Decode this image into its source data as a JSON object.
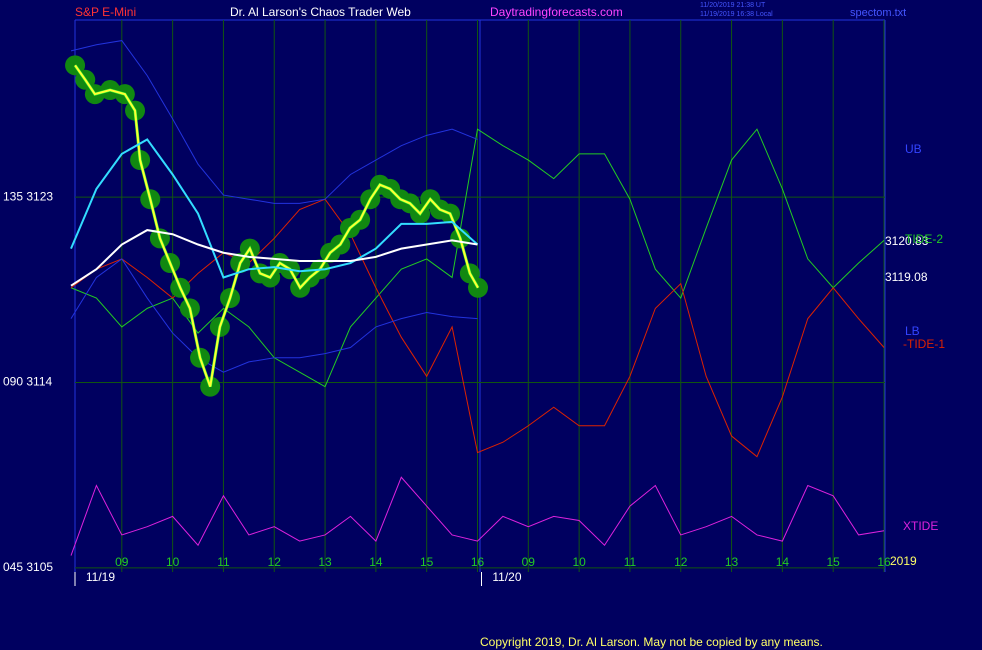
{
  "header": {
    "symbol": "S&P E-Mini",
    "site_title": "Dr. Al Larson's Chaos Trader Web",
    "site": "Daytradingforecasts.com",
    "time_ut": "11/20/2019 21:38 UT",
    "time_local": "11/19/2019 16:38 Local",
    "file": "spectom.txt"
  },
  "footer": {
    "copyright": "Copyright 2019, Dr. Al Larson. May not be copied by any means."
  },
  "chart_data": {
    "type": "line",
    "xlim": [
      0,
      16
    ],
    "ylim": [
      3104.8,
      3131.6
    ],
    "xticks": [
      {
        "value": 1,
        "label": "09"
      },
      {
        "value": 2,
        "label": "10"
      },
      {
        "value": 3,
        "label": "11"
      },
      {
        "value": 4,
        "label": "12"
      },
      {
        "value": 5,
        "label": "13"
      },
      {
        "value": 6,
        "label": "14"
      },
      {
        "value": 7,
        "label": "15"
      },
      {
        "value": 8,
        "label": "16"
      },
      {
        "value": 9,
        "label": "09"
      },
      {
        "value": 10,
        "label": "10"
      },
      {
        "value": 11,
        "label": "11"
      },
      {
        "value": 12,
        "label": "12"
      },
      {
        "value": 13,
        "label": "13"
      },
      {
        "value": 14,
        "label": "14"
      },
      {
        "value": 15,
        "label": "15"
      },
      {
        "value": 16,
        "label": "16"
      }
    ],
    "yticks": [
      {
        "value": 3123,
        "label": "135  3123"
      },
      {
        "value": 3114,
        "label": "090  3114"
      },
      {
        "value": 3105,
        "label": "045  3105"
      }
    ],
    "grid": true,
    "dates": [
      {
        "value": 0,
        "label": "11/19"
      },
      {
        "value": 8,
        "label": "11/20"
      }
    ],
    "right_labels": [
      "UB",
      "3120.83",
      "TIDE-2",
      "3119.08",
      "LB",
      "-TIDE-1",
      "XTIDE",
      "2019"
    ],
    "series": [
      {
        "name": "TIDE-2",
        "color": "#22cc22",
        "x": [
          0,
          0.5,
          1,
          1.5,
          2,
          2.5,
          3,
          3.5,
          4,
          4.5,
          5,
          5.5,
          6,
          6.5,
          7,
          7.5,
          8,
          8.5,
          9,
          9.5,
          10,
          10.5,
          11,
          11.5,
          12,
          12.5,
          13,
          13.5,
          14,
          14.5,
          15,
          15.5,
          16
        ],
        "values": [
          3118.6,
          3118.1,
          3116.7,
          3117.6,
          3118.1,
          3116.4,
          3117.6,
          3116.7,
          3115.2,
          3114.5,
          3113.8,
          3116.7,
          3118.1,
          3119.5,
          3120.0,
          3119.1,
          3126.3,
          3125.5,
          3124.8,
          3123.9,
          3125.1,
          3125.1,
          3122.9,
          3119.5,
          3118.1,
          3121.5,
          3124.8,
          3126.3,
          3123.4,
          3120.0,
          3118.6,
          3119.8,
          3120.9
        ]
      },
      {
        "name": "-TIDE-1",
        "color": "#dd2200",
        "x": [
          0,
          0.5,
          1,
          1.5,
          2,
          2.5,
          3,
          3.5,
          4,
          4.5,
          5,
          5.5,
          6,
          6.5,
          7,
          7.5,
          8,
          8.5,
          9,
          9.5,
          10,
          10.5,
          11,
          11.5,
          12,
          12.5,
          13,
          13.5,
          14,
          14.5,
          15,
          15.5,
          16
        ],
        "values": [
          3118.6,
          3119.5,
          3120.0,
          3119.1,
          3118.1,
          3119.3,
          3120.3,
          3119.8,
          3121.0,
          3122.4,
          3122.9,
          3121.2,
          3118.6,
          3116.2,
          3114.3,
          3116.7,
          3110.6,
          3111.1,
          3111.9,
          3112.8,
          3111.9,
          3111.9,
          3114.3,
          3117.6,
          3118.8,
          3114.3,
          3111.4,
          3110.4,
          3113.3,
          3117.1,
          3118.6,
          3117.1,
          3115.7
        ]
      },
      {
        "name": "XTIDE",
        "color": "#dd22dd",
        "x": [
          0,
          0.5,
          1,
          1.5,
          2,
          2.5,
          3,
          3.5,
          4,
          4.5,
          5,
          5.5,
          6,
          6.5,
          7,
          7.5,
          8,
          8.5,
          9,
          9.5,
          10,
          10.5,
          11,
          11.5,
          12,
          12.5,
          13,
          13.5,
          14,
          14.5,
          15,
          15.5,
          16
        ],
        "values": [
          3105.6,
          3109.0,
          3106.6,
          3107.0,
          3107.5,
          3106.1,
          3108.5,
          3106.6,
          3107.0,
          3106.3,
          3106.6,
          3107.5,
          3106.3,
          3109.4,
          3108.0,
          3106.6,
          3106.3,
          3107.5,
          3107.0,
          3107.5,
          3107.3,
          3106.1,
          3108.0,
          3109.0,
          3106.6,
          3107.0,
          3107.5,
          3106.6,
          3106.3,
          3109.0,
          3108.5,
          3106.6,
          3106.8
        ]
      },
      {
        "name": "UB",
        "color": "#2233dd",
        "x": [
          0,
          0.5,
          1,
          1.5,
          2,
          2.5,
          3,
          3.5,
          4,
          4.5,
          5,
          5.5,
          6,
          6.5,
          7,
          7.5,
          8
        ],
        "values": [
          3130.1,
          3130.4,
          3130.6,
          3128.9,
          3126.8,
          3124.6,
          3123.1,
          3122.9,
          3122.7,
          3122.7,
          3122.9,
          3124.1,
          3124.8,
          3125.5,
          3126.0,
          3126.3,
          3125.8
        ]
      },
      {
        "name": "LB",
        "color": "#2233dd",
        "x": [
          0,
          0.5,
          1,
          1.5,
          2,
          2.5,
          3,
          3.5,
          4,
          4.5,
          5,
          5.5,
          6,
          6.5,
          7,
          7.5,
          8
        ],
        "values": [
          3117.1,
          3119.1,
          3120.0,
          3118.1,
          3116.4,
          3115.2,
          3114.5,
          3115.0,
          3115.2,
          3115.2,
          3115.4,
          3115.7,
          3116.7,
          3117.1,
          3117.4,
          3117.2,
          3117.1
        ]
      },
      {
        "name": "Price",
        "color": "#ffff33",
        "x": [
          0.08,
          0.28,
          0.47,
          0.77,
          1.06,
          1.26,
          1.36,
          1.56,
          1.75,
          1.95,
          2.15,
          2.34,
          2.54,
          2.74,
          2.93,
          3.13,
          3.33,
          3.52,
          3.72,
          3.92,
          4.11,
          4.31,
          4.51,
          4.7,
          4.9,
          5.1,
          5.3,
          5.49,
          5.69,
          5.89,
          6.08,
          6.28,
          6.48,
          6.67,
          6.87,
          7.07,
          7.26,
          7.46,
          7.66,
          7.85,
          8.01
        ],
        "values": [
          3129.4,
          3128.7,
          3128.0,
          3128.2,
          3128.0,
          3127.2,
          3124.8,
          3122.9,
          3121.0,
          3119.8,
          3118.6,
          3117.6,
          3115.2,
          3113.8,
          3116.7,
          3118.1,
          3119.8,
          3120.5,
          3119.3,
          3119.1,
          3119.8,
          3119.5,
          3118.6,
          3119.1,
          3119.5,
          3120.3,
          3120.7,
          3121.5,
          3121.9,
          3122.9,
          3123.6,
          3123.4,
          3122.9,
          3122.7,
          3122.2,
          3122.9,
          3122.4,
          3122.2,
          3121.0,
          3119.3,
          3118.6
        ]
      },
      {
        "name": "MA-cyan",
        "color": "#33ddff",
        "x": [
          0,
          0.5,
          1,
          1.5,
          2,
          2.5,
          3,
          3.5,
          4,
          4.5,
          5,
          5.5,
          6,
          6.5,
          7,
          7.5,
          8
        ],
        "values": [
          3120.5,
          3123.4,
          3125.1,
          3125.8,
          3124.1,
          3122.2,
          3119.1,
          3119.5,
          3119.6,
          3119.4,
          3119.5,
          3119.8,
          3120.5,
          3121.7,
          3121.7,
          3121.8,
          3120.7
        ]
      },
      {
        "name": "MA-white",
        "color": "#ffffff",
        "x": [
          0,
          0.5,
          1,
          1.5,
          2,
          2.5,
          3,
          3.5,
          4,
          4.5,
          5,
          5.5,
          6,
          6.5,
          7,
          7.5,
          8
        ],
        "values": [
          3118.7,
          3119.5,
          3120.7,
          3121.4,
          3121.2,
          3120.7,
          3120.3,
          3120.1,
          3120.0,
          3119.9,
          3119.9,
          3119.9,
          3120.1,
          3120.5,
          3120.7,
          3120.9,
          3120.7
        ]
      }
    ]
  }
}
